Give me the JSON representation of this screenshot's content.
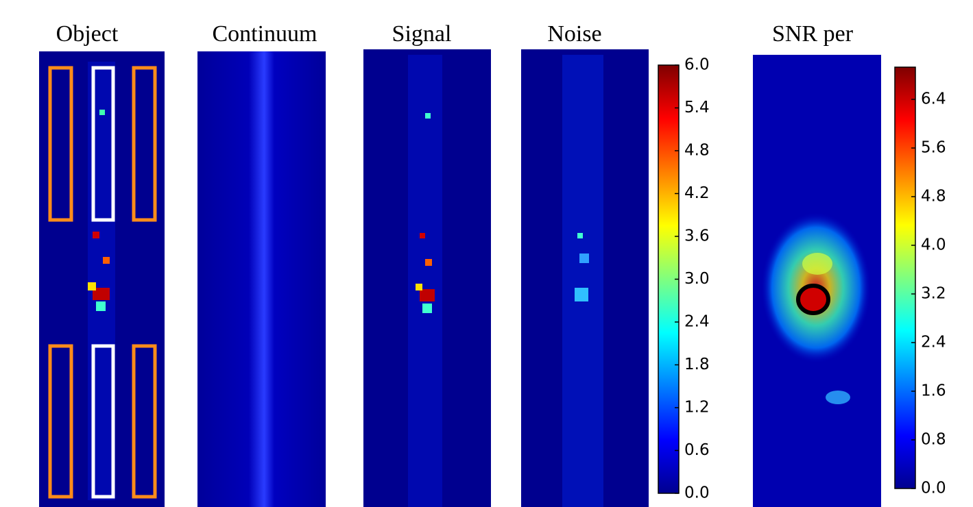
{
  "panels": [
    {
      "title": "Object"
    },
    {
      "title": "Continuum"
    },
    {
      "title": "Signal"
    },
    {
      "title": "Noise"
    },
    {
      "title": "SNR per"
    }
  ],
  "colorbars": [
    {
      "lim": [
        0,
        6
      ],
      "ticks": [
        {
          "value": 0,
          "label": "0.0"
        },
        0.6,
        1.2,
        1.8,
        2.4,
        {
          "value": 3,
          "label": "3.0"
        },
        3.6,
        4.2,
        4.8,
        5.4,
        {
          "value": 6,
          "label": "6.0"
        }
      ]
    },
    {
      "lim": [
        0,
        6.93
      ],
      "ticks": [
        {
          "value": 0,
          "label": "0.0"
        },
        0.8,
        1.6,
        2.4,
        3.2,
        {
          "value": 4,
          "label": "4.0"
        },
        4.8,
        5.6,
        6.4
      ]
    }
  ]
}
